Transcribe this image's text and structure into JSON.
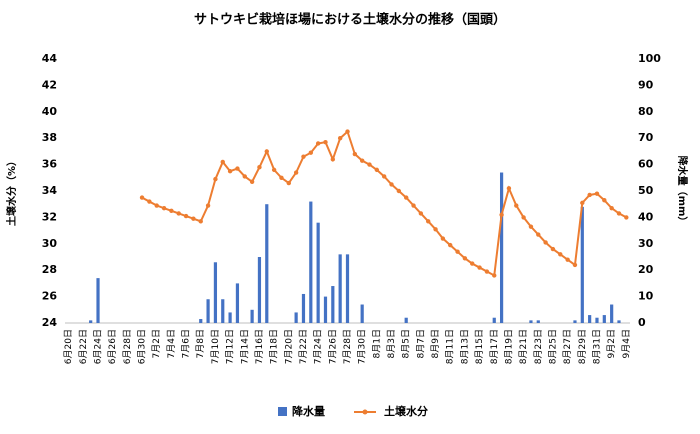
{
  "chart_data": {
    "type": "bar_line",
    "title": "サトウキビ栽培ほ場における土壌水分の推移（国頭）",
    "ylabel": "土壌水分（%）",
    "y2label": "降水量（mm）",
    "categories": [
      "6月20日",
      null,
      "6月22日",
      null,
      "6月24日",
      null,
      "6月26日",
      null,
      "6月28日",
      null,
      "6月30日",
      null,
      "7月2日",
      null,
      "7月4日",
      null,
      "7月6日",
      null,
      "7月8日",
      null,
      "7月10日",
      null,
      "7月12日",
      null,
      "7月14日",
      null,
      "7月16日",
      null,
      "7月18日",
      null,
      "7月20日",
      null,
      "7月22日",
      null,
      "7月24日",
      null,
      "7月26日",
      null,
      "7月28日",
      null,
      "7月30日",
      null,
      "8月1日",
      null,
      "8月3日",
      null,
      "8月5日",
      null,
      "8月7日",
      null,
      "8月9日",
      null,
      "8月11日",
      null,
      "8月13日",
      null,
      "8月15日",
      null,
      "8月17日",
      null,
      "8月19日",
      null,
      "8月21日",
      null,
      "8月23日",
      null,
      "8月25日",
      null,
      "8月27日",
      null,
      "8月29日",
      null,
      "8月31日",
      null,
      "9月2日",
      null,
      "9月4日"
    ],
    "series": [
      {
        "name": "降水量",
        "color": "#4472c4",
        "axis": "y2",
        "kind": "bar",
        "values": [
          0,
          0,
          0,
          1,
          17,
          0,
          0,
          0,
          0,
          0,
          0,
          0,
          0,
          0,
          0,
          0,
          0,
          0,
          1.5,
          9,
          23,
          9,
          4,
          15,
          0,
          5,
          25,
          45,
          0,
          0,
          0,
          4,
          11,
          46,
          38,
          10,
          14,
          26,
          26,
          0,
          7,
          0,
          0,
          0,
          0,
          0,
          2,
          0,
          0,
          0,
          0,
          0,
          0,
          0,
          0,
          0,
          0,
          0,
          2,
          57,
          0,
          0,
          0,
          1,
          1,
          0,
          0,
          0,
          0,
          1,
          44,
          3,
          2,
          3,
          7,
          1,
          0
        ]
      },
      {
        "name": "土壌水分",
        "color": "#ed7d31",
        "axis": "y",
        "kind": "line",
        "values": [
          null,
          null,
          null,
          null,
          null,
          null,
          null,
          null,
          null,
          null,
          33.5,
          33.2,
          32.9,
          32.7,
          32.5,
          32.3,
          32.1,
          31.9,
          31.7,
          32.9,
          34.9,
          36.2,
          35.5,
          35.7,
          35.1,
          34.7,
          35.8,
          37.0,
          35.6,
          35.0,
          34.6,
          35.4,
          36.6,
          36.9,
          37.6,
          37.7,
          36.4,
          38.0,
          38.5,
          36.8,
          36.3,
          36.0,
          35.6,
          35.1,
          34.5,
          34.0,
          33.5,
          32.9,
          32.3,
          31.7,
          31.1,
          30.4,
          29.9,
          29.4,
          28.9,
          28.5,
          28.2,
          27.9,
          27.6,
          32.2,
          34.2,
          32.9,
          32.0,
          31.3,
          30.7,
          30.1,
          29.6,
          29.2,
          28.8,
          28.4,
          33.1,
          33.7,
          33.8,
          33.3,
          32.7,
          32.3,
          32.0
        ]
      }
    ],
    "ylim": [
      24,
      44
    ],
    "yticks": [
      24,
      26,
      28,
      30,
      32,
      34,
      36,
      38,
      40,
      42,
      44
    ],
    "y2lim": [
      0,
      100
    ],
    "y2ticks": [
      0,
      10,
      20,
      30,
      40,
      50,
      60,
      70,
      80,
      90,
      100
    ],
    "grid": false,
    "legend": "bottom"
  }
}
